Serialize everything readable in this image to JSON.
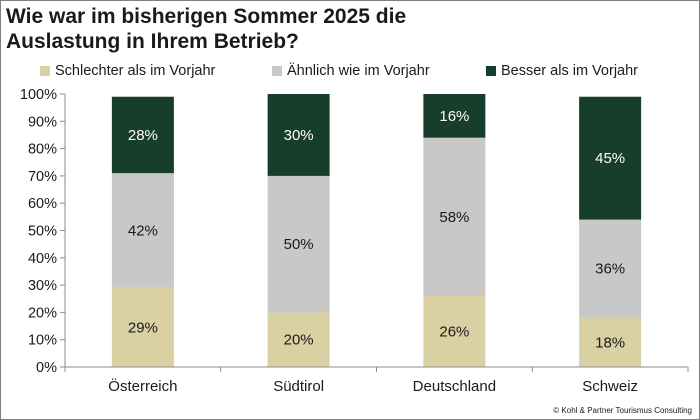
{
  "header": {
    "title": "Wie war im bisherigen Sommer 2025 die\nAuslastung in Ihrem Betrieb?"
  },
  "legend": [
    {
      "label": "Schlechter als im Vorjahr",
      "color": "#d9d0a3"
    },
    {
      "label": "Ähnlich wie im Vorjahr",
      "color": "#c8c8c8"
    },
    {
      "label": "Besser als im Vorjahr",
      "color": "#173d2b"
    }
  ],
  "footer": {
    "copyright": "© Kohl & Partner Tourismus Consulting"
  },
  "chart_data": {
    "type": "bar",
    "stacked": true,
    "categories": [
      "Österreich",
      "Südtirol",
      "Deutschland",
      "Schweiz"
    ],
    "series": [
      {
        "name": "Schlechter als im Vorjahr",
        "values": [
          29,
          20,
          26,
          18
        ],
        "labels": [
          "29%",
          "20%",
          "26%",
          "18%"
        ],
        "color": "#d9d0a3",
        "label_color": "#1a1a1a"
      },
      {
        "name": "Ähnlich wie im Vorjahr",
        "values": [
          42,
          50,
          58,
          36
        ],
        "labels": [
          "42%",
          "50%",
          "58%",
          "36%"
        ],
        "color": "#c8c8c8",
        "label_color": "#1a1a1a"
      },
      {
        "name": "Besser als im Vorjahr",
        "values": [
          28,
          30,
          16,
          45
        ],
        "labels": [
          "28%",
          "30%",
          "16%",
          "45%"
        ],
        "color": "#173d2b",
        "label_color": "#ffffff"
      }
    ],
    "ylim": [
      0,
      100
    ],
    "yticks": [
      0,
      10,
      20,
      30,
      40,
      50,
      60,
      70,
      80,
      90,
      100
    ],
    "ytick_labels": [
      "0%",
      "10%",
      "20%",
      "30%",
      "40%",
      "50%",
      "60%",
      "70%",
      "80%",
      "90%",
      "100%"
    ],
    "grid": false,
    "legend_position": "top"
  }
}
